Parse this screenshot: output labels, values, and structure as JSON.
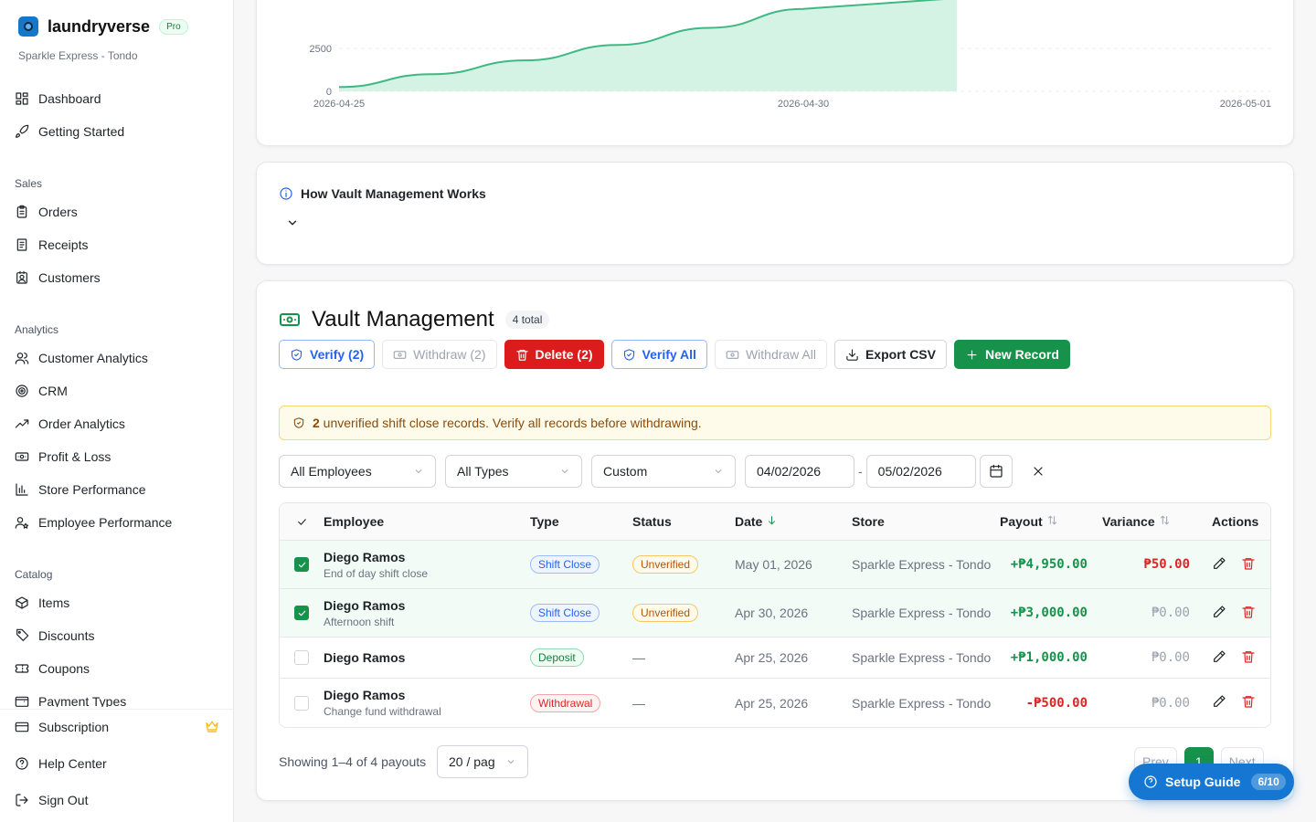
{
  "sidebar": {
    "brand": "laundryverse",
    "plan_badge": "Pro",
    "store_name": "Sparkle Express - Tondo",
    "top_items": [
      {
        "label": "Dashboard",
        "icon": "dashboard-icon"
      },
      {
        "label": "Getting Started",
        "icon": "rocket-icon"
      }
    ],
    "sections": [
      {
        "title": "Sales",
        "items": [
          {
            "label": "Orders",
            "icon": "clipboard-icon"
          },
          {
            "label": "Receipts",
            "icon": "receipt-icon"
          },
          {
            "label": "Customers",
            "icon": "contact-icon"
          }
        ]
      },
      {
        "title": "Analytics",
        "items": [
          {
            "label": "Customer Analytics",
            "icon": "users-icon"
          },
          {
            "label": "CRM",
            "icon": "target-icon"
          },
          {
            "label": "Order Analytics",
            "icon": "trending-up-icon"
          },
          {
            "label": "Profit & Loss",
            "icon": "banknote-icon"
          },
          {
            "label": "Store Performance",
            "icon": "bar-chart-icon"
          },
          {
            "label": "Employee Performance",
            "icon": "user-star-icon"
          }
        ]
      },
      {
        "title": "Catalog",
        "items": [
          {
            "label": "Items",
            "icon": "package-icon"
          },
          {
            "label": "Discounts",
            "icon": "tag-icon"
          },
          {
            "label": "Coupons",
            "icon": "ticket-icon"
          },
          {
            "label": "Payment Types",
            "icon": "wallet-icon"
          }
        ]
      }
    ],
    "bottom_items": [
      {
        "label": "Subscription",
        "icon": "credit-card-icon"
      },
      {
        "label": "Help Center",
        "icon": "help-circle-icon"
      },
      {
        "label": "Sign Out",
        "icon": "log-out-icon"
      }
    ]
  },
  "chart_data": {
    "type": "area",
    "x": [
      "2026-04-25",
      "2026-04-26",
      "2026-04-27",
      "2026-04-28",
      "2026-04-29",
      "2026-04-30",
      "2026-05-01"
    ],
    "values": [
      250,
      1000,
      1800,
      2700,
      3700,
      4800,
      null
    ],
    "x_tick_labels": [
      "2026-04-25",
      "2026-04-30",
      "2026-05-01"
    ],
    "y_tick_labels": [
      "0",
      "2500"
    ],
    "ylim": [
      0,
      5000
    ],
    "color": "#3fb883",
    "fill": "#d4f3e4",
    "grid": true
  },
  "info": {
    "title": "How Vault Management Works"
  },
  "vault": {
    "title": "Vault Management",
    "total_badge": "4 total",
    "toolbar": {
      "verify_selected": "Verify (2)",
      "withdraw_selected": "Withdraw (2)",
      "delete_selected": "Delete (2)",
      "verify_all": "Verify All",
      "withdraw_all": "Withdraw All",
      "export_csv": "Export CSV",
      "new_record": "New Record"
    },
    "alert": {
      "count": "2",
      "message": " unverified shift close records. Verify all records before withdrawing."
    },
    "filters": {
      "employee": "All Employees",
      "type": "All Types",
      "range": "Custom",
      "date_from": "04/02/2026",
      "date_sep": "-",
      "date_to": "05/02/2026"
    },
    "columns": {
      "employee": "Employee",
      "type": "Type",
      "status": "Status",
      "date": "Date",
      "store": "Store",
      "payout": "Payout",
      "variance": "Variance",
      "actions": "Actions"
    },
    "rows": [
      {
        "employee": "Diego Ramos",
        "note": "End of day shift close",
        "type": "Shift Close",
        "status": "Unverified",
        "date": "May 01, 2026",
        "store": "Sparkle Express - Tondo",
        "payout": "+₱4,950.00",
        "variance": "₱50.00",
        "selected": true
      },
      {
        "employee": "Diego Ramos",
        "note": "Afternoon shift",
        "type": "Shift Close",
        "status": "Unverified",
        "date": "Apr 30, 2026",
        "store": "Sparkle Express - Tondo",
        "payout": "+₱3,000.00",
        "variance": "₱0.00",
        "selected": true
      },
      {
        "employee": "Diego Ramos",
        "note": "",
        "type": "Deposit",
        "status": "—",
        "date": "Apr 25, 2026",
        "store": "Sparkle Express - Tondo",
        "payout": "+₱1,000.00",
        "variance": "₱0.00",
        "selected": false
      },
      {
        "employee": "Diego Ramos",
        "note": "Change fund withdrawal",
        "type": "Withdrawal",
        "status": "—",
        "date": "Apr 25, 2026",
        "store": "Sparkle Express - Tondo",
        "payout": "-₱500.00",
        "variance": "₱0.00",
        "selected": false
      }
    ],
    "footer": {
      "showing": "Showing 1–4 of 4 payouts",
      "page_size": "20 / pag",
      "prev": "Prev",
      "current_page": "1",
      "next": "Next"
    }
  },
  "setup_guide": {
    "label": "Setup Guide",
    "progress": "6/10"
  }
}
